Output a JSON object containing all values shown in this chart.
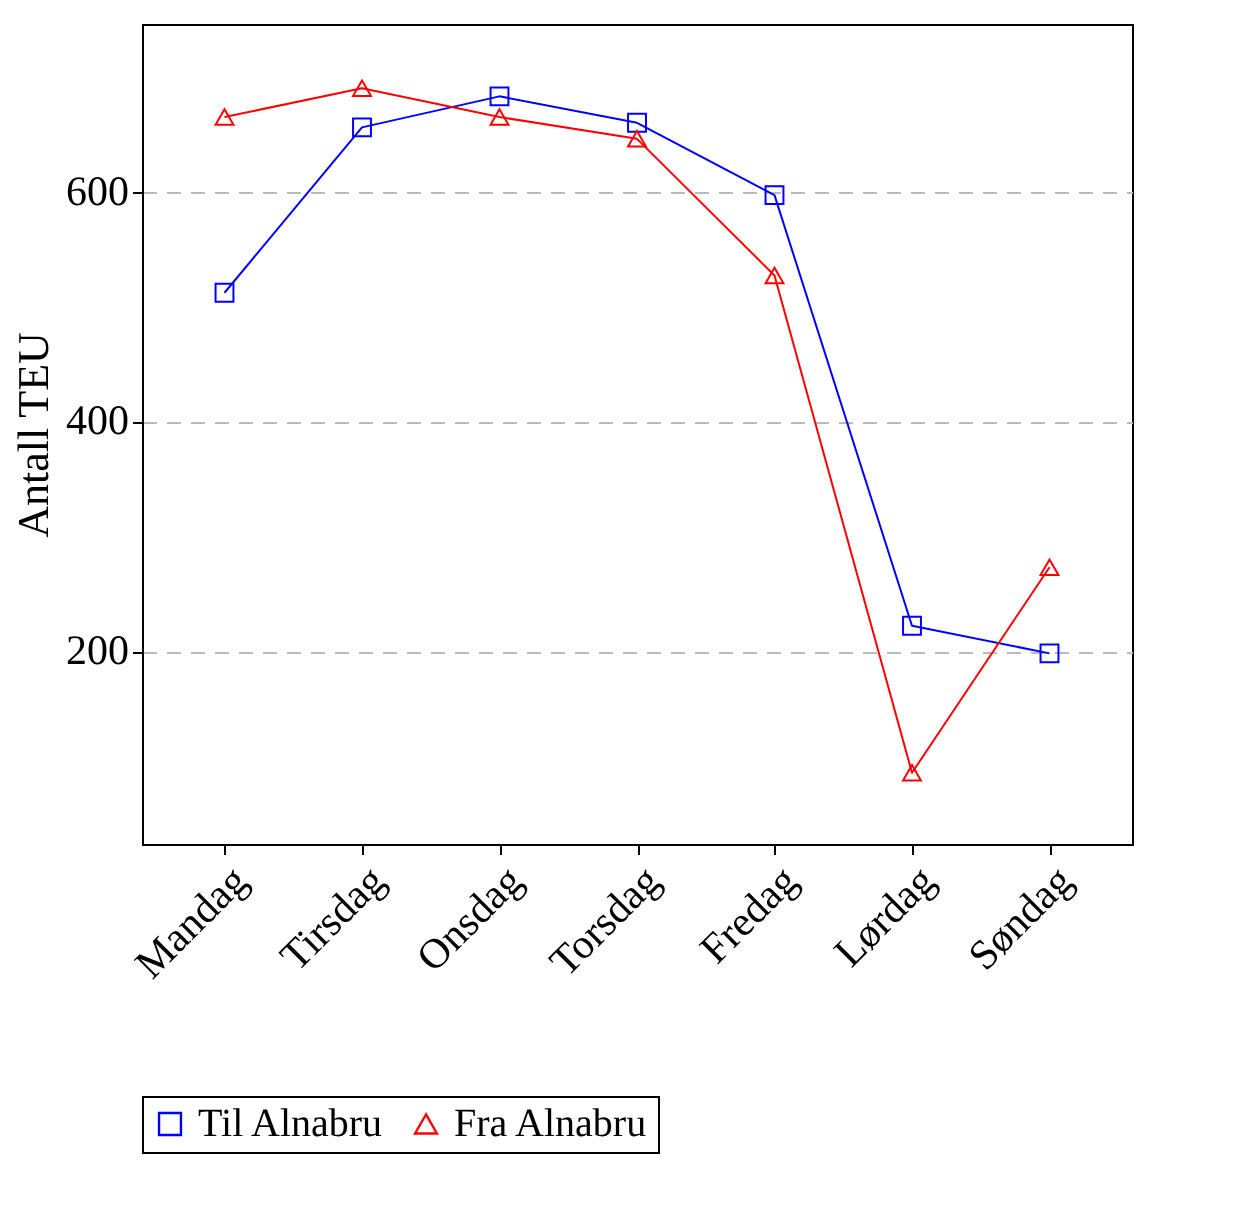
{
  "chart_data": {
    "type": "line",
    "ylabel": "Antall TEU",
    "categories": [
      "Mandag",
      "Tirsdag",
      "Onsdag",
      "Torsdag",
      "Fredag",
      "Lørdag",
      "Søndag"
    ],
    "series": [
      {
        "name": "Til Alnabru",
        "color": "#0000ff",
        "marker": "square",
        "values": [
          512,
          656,
          683,
          660,
          597,
          222,
          198
        ]
      },
      {
        "name": "Fra Alnabru",
        "color": "#ff0000",
        "marker": "triangle",
        "values": [
          665,
          690,
          665,
          646,
          527,
          94,
          273
        ]
      }
    ],
    "ylim": [
      32,
      746
    ],
    "yticks": [
      200,
      400,
      600
    ],
    "grid": "y",
    "legend": "bottom",
    "line_style": "solid"
  }
}
